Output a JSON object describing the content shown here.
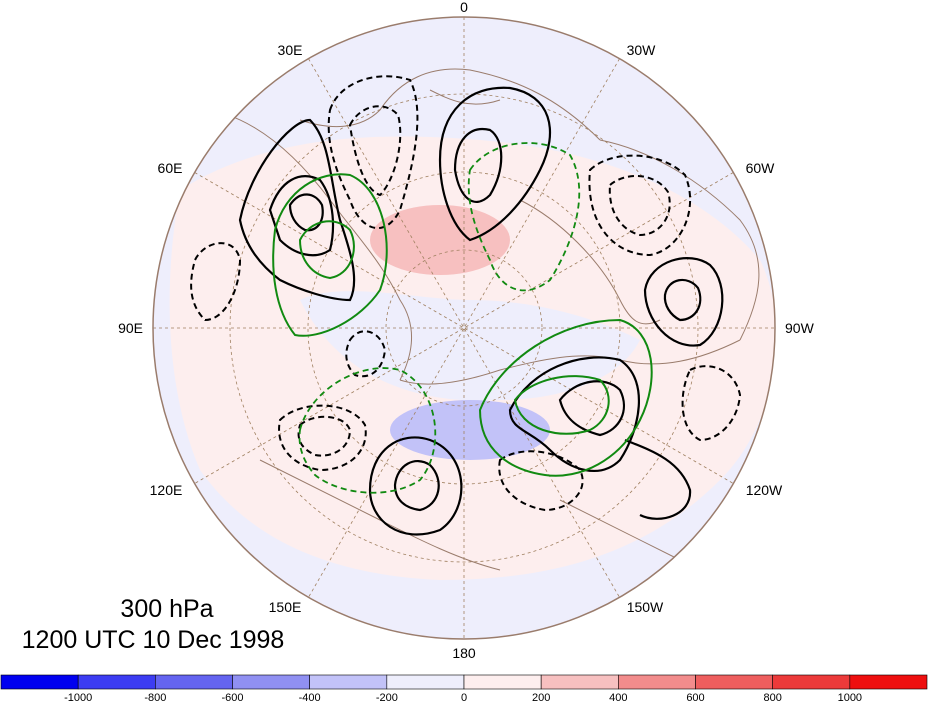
{
  "map": {
    "level_label": "300 hPa",
    "time_label": "1200 UTC 10 Dec 1998",
    "longitude_labels": {
      "top": "0",
      "bottom": "180",
      "left": "90E",
      "right": "90W",
      "upper_left_1": "30E",
      "upper_left_2": "60E",
      "upper_right_1": "30W",
      "upper_right_2": "60W",
      "lower_left_1": "120E",
      "lower_left_2": "150E",
      "lower_right_1": "120W",
      "lower_right_2": "150W"
    }
  },
  "colorbar": {
    "tick_labels": [
      "-1000",
      "-800",
      "-600",
      "-400",
      "-200",
      "0",
      "200",
      "400",
      "600",
      "800",
      "1000"
    ],
    "colors": [
      "#0000f0",
      "#3c3cf2",
      "#6464f0",
      "#9090f2",
      "#c2c2f8",
      "#eeeefc",
      "#fdeeee",
      "#f7c0c0",
      "#f28c8c",
      "#ee5e5e",
      "#ec3a3a",
      "#ee0f0f"
    ]
  },
  "colors": {
    "positive_contour": "#000000",
    "negative_contour": "#000000",
    "green_contour": "#118a11",
    "coastline": "#9a7c6c",
    "grid": "#a08060"
  }
}
